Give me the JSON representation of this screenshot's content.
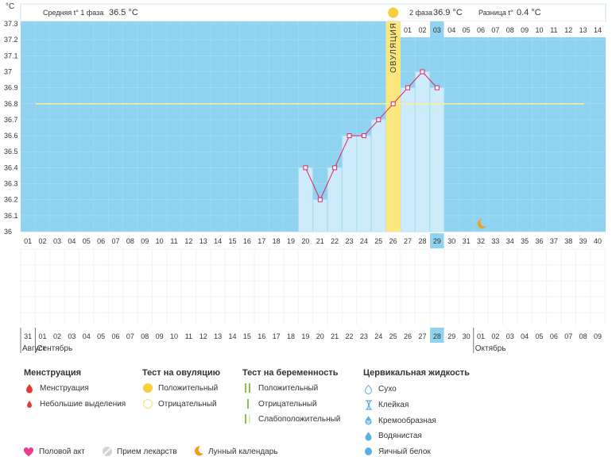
{
  "chart_data": {
    "type": "line",
    "unit_label": "°C",
    "ylim": [
      36,
      37.3
    ],
    "y_ticks": [
      "36",
      "36.1",
      "36.2",
      "36.3",
      "36.4",
      "36.5",
      "36.6",
      "36.7",
      "36.8",
      "36.9",
      "37",
      "37.1",
      "37.2",
      "37.3"
    ],
    "cycle_days": [
      "01",
      "02",
      "03",
      "04",
      "05",
      "06",
      "07",
      "08",
      "09",
      "10",
      "11",
      "12",
      "13",
      "14",
      "15",
      "16",
      "17",
      "18",
      "19",
      "20",
      "21",
      "22",
      "23",
      "24",
      "25",
      "26",
      "27",
      "28",
      "29",
      "30",
      "31",
      "32",
      "33",
      "34",
      "35",
      "36",
      "37",
      "38",
      "39",
      "40"
    ],
    "x": [
      20,
      21,
      22,
      23,
      24,
      25,
      26,
      27,
      28,
      29
    ],
    "temperatures": [
      36.4,
      36.2,
      36.4,
      36.6,
      36.6,
      36.7,
      36.8,
      36.9,
      37.0,
      36.9
    ],
    "coverline": 36.8,
    "ovulation_day": 26,
    "ovulation_label": "ОВУЛЯЦИЯ",
    "current_day": 29,
    "moon_day": 32,
    "phase2_days": [
      "01",
      "02",
      "03",
      "04",
      "05",
      "06",
      "07",
      "08",
      "09",
      "10",
      "11",
      "12",
      "13",
      "14"
    ],
    "phase2_highlight": 3,
    "phase1_label": "Средняя t° 1 фаза",
    "phase1_value": "36.5 °C",
    "phase2_label": "2 фаза",
    "phase2_value": "36.9 °C",
    "diff_label": "Разница t°",
    "diff_value": "0.4 °C",
    "dates": [
      "31",
      "01",
      "02",
      "03",
      "04",
      "05",
      "06",
      "07",
      "08",
      "09",
      "10",
      "11",
      "12",
      "13",
      "14",
      "15",
      "16",
      "17",
      "18",
      "19",
      "20",
      "21",
      "22",
      "23",
      "24",
      "25",
      "26",
      "27",
      "28",
      "29",
      "30",
      "01",
      "02",
      "03",
      "04",
      "05",
      "06",
      "07",
      "08",
      "09"
    ],
    "red_date_indices": [
      0,
      1,
      7,
      8,
      14,
      15,
      21,
      22,
      29,
      35,
      36
    ],
    "current_date_index": 28,
    "month_labels": [
      {
        "label": "Август",
        "index": 0
      },
      {
        "label": "Сентябрь",
        "index": 1
      },
      {
        "label": "Октябрь",
        "index": 31
      }
    ],
    "colors": {
      "sky": "#8fd3f0",
      "bar": "#cdebfb",
      "line": "#e0245e",
      "coverline": "#f5f19a",
      "ovulation": "#fce77f",
      "sun": "#f7cf3c",
      "moon": "#f0a01f",
      "highlight": "#8fd3f0"
    }
  },
  "legend": {
    "menstruation": {
      "title": "Менструация",
      "items": [
        "Менструация",
        "Небольшие выделения"
      ]
    },
    "ovulation_test": {
      "title": "Тест на овуляцию",
      "items": [
        "Положительный",
        "Отрицательный"
      ]
    },
    "pregnancy_test": {
      "title": "Тест на беременность",
      "items": [
        "Положительный",
        "Отрицательный",
        "Слабоположительный"
      ]
    },
    "cervical": {
      "title": "Цервикальная жидкость",
      "items": [
        "Сухо",
        "Клейкая",
        "Кремообразная",
        "Водянистая",
        "Яичный белок"
      ]
    },
    "bottom": [
      "Половой акт",
      "Прием лекарств",
      "Лунный календарь"
    ]
  }
}
